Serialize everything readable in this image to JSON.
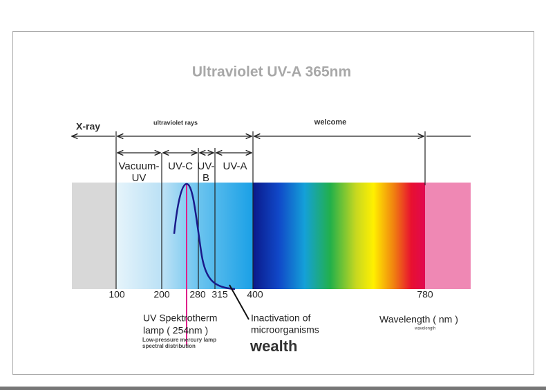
{
  "header": {
    "title": "Ultraviolet UV-A 365nm"
  },
  "regions": {
    "xray": "X-ray",
    "ultraviolet": "ultraviolet rays",
    "visible": "welcome"
  },
  "bands": [
    {
      "label": [
        "Vacuum-",
        "UV"
      ]
    },
    {
      "label": [
        "UV-C"
      ]
    },
    {
      "label": [
        "UV-",
        "B"
      ]
    },
    {
      "label": [
        "UV-A"
      ]
    }
  ],
  "ticks": [
    "100",
    "200",
    "280",
    "315",
    "400",
    "780"
  ],
  "notes": {
    "lamp": [
      "UV Spektrotherm",
      "lamp ( 254nm )"
    ],
    "lamp_sub": [
      "Low-pressure mercury lamp",
      "spectral distribution"
    ],
    "inactivation": [
      "Inactivation of",
      "microorganisms"
    ],
    "wealth": "wealth",
    "axis": "Wavelength ( nm )",
    "axis_sub": "wavelength"
  }
}
